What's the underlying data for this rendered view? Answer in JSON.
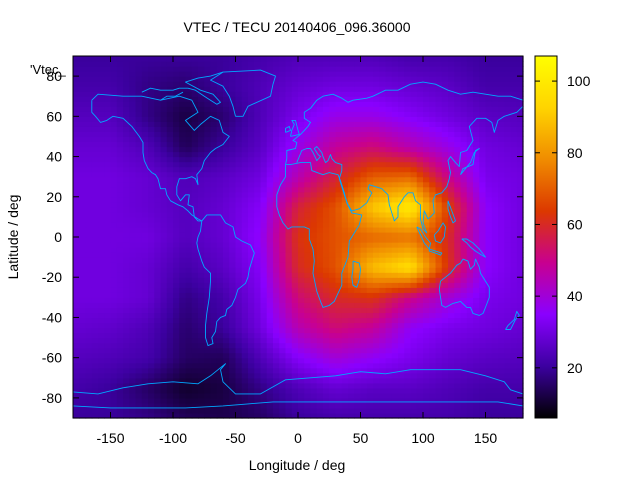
{
  "chart_data": {
    "type": "heatmap",
    "title": "VTEC / TECU 20140406_096.36000",
    "xlabel": "Longitude / deg",
    "ylabel": "Latitude / deg",
    "legend_label": "'Vtec_",
    "xlim": [
      -180,
      180
    ],
    "ylim": [
      -90,
      90
    ],
    "xticks": [
      -150,
      -100,
      -50,
      0,
      50,
      100,
      150
    ],
    "yticks": [
      -80,
      -60,
      -40,
      -20,
      0,
      20,
      40,
      60,
      80
    ],
    "colorbar": {
      "range": [
        6,
        107
      ],
      "ticks": [
        20,
        40,
        60,
        80,
        100
      ],
      "palette": [
        "#000000",
        "#3c00a0",
        "#8a00ff",
        "#c80090",
        "#dc3800",
        "#f08c00",
        "#ffd400",
        "#ffff00"
      ]
    },
    "lon": [
      -180,
      -150,
      -120,
      -90,
      -60,
      -30,
      0,
      30,
      60,
      90,
      120,
      150,
      180
    ],
    "lat": [
      -90,
      -75,
      -60,
      -45,
      -30,
      -15,
      0,
      15,
      30,
      45,
      60,
      75,
      90
    ],
    "values": [
      [
        20,
        20,
        18,
        14,
        13,
        15,
        20,
        22,
        22,
        22,
        22,
        20,
        20
      ],
      [
        22,
        20,
        15,
        10,
        12,
        18,
        24,
        28,
        26,
        26,
        24,
        22,
        22
      ],
      [
        25,
        24,
        22,
        15,
        14,
        24,
        34,
        40,
        36,
        32,
        28,
        26,
        25
      ],
      [
        28,
        27,
        24,
        16,
        20,
        30,
        45,
        52,
        48,
        36,
        32,
        30,
        28
      ],
      [
        30,
        30,
        28,
        18,
        22,
        32,
        52,
        60,
        62,
        50,
        40,
        32,
        30
      ],
      [
        30,
        30,
        28,
        22,
        26,
        34,
        60,
        68,
        88,
        96,
        62,
        35,
        30
      ],
      [
        30,
        30,
        30,
        25,
        28,
        36,
        62,
        68,
        72,
        74,
        60,
        35,
        30
      ],
      [
        30,
        30,
        28,
        25,
        28,
        34,
        58,
        68,
        90,
        100,
        65,
        35,
        30
      ],
      [
        30,
        30,
        28,
        24,
        26,
        30,
        45,
        58,
        70,
        72,
        50,
        32,
        30
      ],
      [
        28,
        28,
        24,
        14,
        20,
        26,
        38,
        48,
        52,
        45,
        38,
        30,
        28
      ],
      [
        25,
        25,
        18,
        12,
        16,
        24,
        32,
        38,
        38,
        34,
        30,
        26,
        25
      ],
      [
        22,
        22,
        18,
        16,
        20,
        24,
        28,
        30,
        30,
        28,
        26,
        22,
        22
      ],
      [
        20,
        20,
        20,
        20,
        20,
        22,
        24,
        24,
        24,
        22,
        22,
        20,
        20
      ]
    ]
  }
}
